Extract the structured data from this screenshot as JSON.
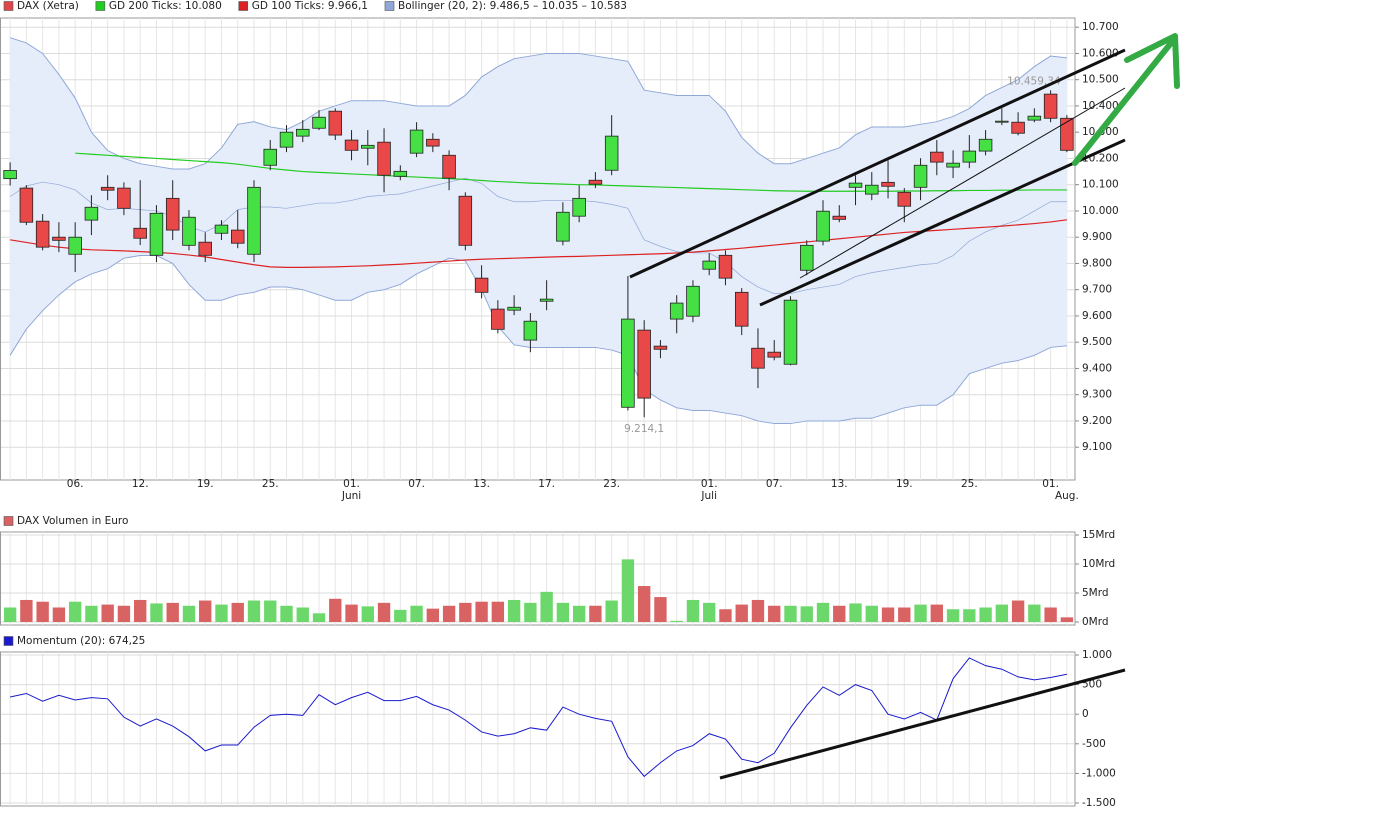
{
  "chart_data": [
    {
      "type": "candlestick",
      "categories": [
        null,
        null,
        null,
        null,
        "06.",
        null,
        null,
        null,
        "12.",
        null,
        null,
        null,
        "19.",
        null,
        null,
        null,
        "25.",
        null,
        null,
        null,
        null,
        "01.",
        null,
        null,
        null,
        "07.",
        null,
        null,
        null,
        "13.",
        null,
        null,
        null,
        "17.",
        null,
        null,
        null,
        "23.",
        null,
        null,
        null,
        null,
        null,
        "01.",
        null,
        null,
        null,
        "07.",
        null,
        null,
        null,
        "13.",
        null,
        null,
        null,
        "19.",
        null,
        null,
        null,
        "25.",
        null,
        null,
        null,
        null,
        "01.",
        null
      ],
      "months": [
        null,
        null,
        null,
        null,
        null,
        null,
        null,
        null,
        null,
        null,
        null,
        null,
        null,
        null,
        null,
        null,
        null,
        null,
        null,
        null,
        null,
        "Juni",
        null,
        null,
        null,
        null,
        null,
        null,
        null,
        null,
        null,
        null,
        null,
        null,
        null,
        null,
        null,
        null,
        null,
        null,
        null,
        null,
        null,
        "Juli",
        null,
        null,
        null,
        null,
        null,
        null,
        null,
        null,
        null,
        null,
        null,
        null,
        null,
        null,
        null,
        null,
        null,
        null,
        null,
        null,
        null,
        "Aug.",
        null
      ],
      "series": [
        {
          "name": "DAX (Xetra)",
          "color": "#e0474c",
          "up_color": "#44e044",
          "down_color": "#e84848",
          "open": [
            10123,
            10087,
            9961,
            9900,
            9835,
            9965,
            10090,
            10087,
            9934,
            9831,
            10048,
            9869,
            9881,
            9915,
            9927,
            9835,
            10174,
            10243,
            10285,
            10315,
            10380,
            10270,
            10239,
            10262,
            10132,
            10220,
            10273,
            10212,
            10056,
            9744,
            9626,
            9622,
            9508,
            9656,
            9885,
            9980,
            10117,
            10155,
            9252,
            9546,
            9485,
            9588,
            9599,
            9778,
            9831,
            9690,
            9477,
            9462,
            9416,
            9774,
            9885,
            9980,
            10090,
            10064,
            10109,
            10071,
            10090,
            10224,
            10167,
            10186,
            10228,
            10338,
            10338,
            10346,
            10445,
            10353
          ],
          "high": [
            10185,
            10098,
            9988,
            9957,
            9957,
            10060,
            10136,
            10109,
            10117,
            10022,
            10117,
            10003,
            9919,
            9965,
            10003,
            10117,
            10270,
            10327,
            10346,
            10384,
            10391,
            10308,
            10308,
            10315,
            10174,
            10338,
            10296,
            10231,
            10071,
            9793,
            9660,
            9679,
            9611,
            9736,
            10033,
            10098,
            10148,
            10365,
            9752,
            9584,
            9508,
            9679,
            9736,
            9839,
            9850,
            9706,
            9553,
            9508,
            9675,
            9888,
            10041,
            10022,
            10136,
            10148,
            10193,
            10087,
            10201,
            10270,
            10231,
            10289,
            10308,
            10391,
            10376,
            10391,
            10459.34,
            10365
          ],
          "low": [
            10097,
            9946,
            9850,
            9843,
            9767,
            9908,
            10041,
            9984,
            9870,
            9805,
            9889,
            9850,
            9805,
            9889,
            9858,
            9805,
            10155,
            10224,
            10262,
            10308,
            10270,
            10193,
            10174,
            10071,
            10117,
            10205,
            10224,
            10079,
            9850,
            9667,
            9534,
            9603,
            9462,
            9622,
            9869,
            9957,
            10087,
            10136,
            9240,
            9214.1,
            9439,
            9534,
            9576,
            9755,
            9717,
            9527,
            9325,
            9431,
            9412,
            9755,
            9869,
            9957,
            10022,
            10041,
            10048,
            9957,
            10041,
            10136,
            10125,
            10163,
            10212,
            10327,
            10288,
            10338,
            10338,
            10224
          ],
          "close": [
            10154,
            9957,
            9862,
            9888,
            9900,
            10014,
            10079,
            10010,
            9896,
            9991,
            9927,
            9976,
            9831,
            9946,
            9877,
            10090,
            10235,
            10300,
            10311,
            10357,
            10289,
            10231,
            10250,
            10136,
            10151,
            10308,
            10247,
            10125,
            9869,
            9690,
            9549,
            9633,
            9580,
            9664,
            9995,
            10048,
            10102,
            10285,
            9588,
            9287,
            9473,
            9649,
            9713,
            9809,
            9744,
            9561,
            9401,
            9443,
            9660,
            9869,
            9999,
            9968,
            10106,
            10098,
            10094,
            10018,
            10174,
            10186,
            10182,
            10228,
            10273,
            10342,
            10296,
            10361,
            10353,
            10231
          ]
        }
      ],
      "lines": [
        {
          "name": "GD 200 Ticks: 10.080",
          "color": "#22cc22",
          "values": [
            null,
            null,
            null,
            null,
            10220,
            10216,
            10212,
            10208,
            10204,
            10200,
            10196,
            10192,
            10188,
            10184,
            10178,
            10170,
            10162,
            10156,
            10150,
            10147,
            10144,
            10141,
            10138,
            10135,
            10132,
            10129,
            10126,
            10123,
            10120,
            10116,
            10112,
            10109,
            10106,
            10104,
            10102,
            10100,
            10099,
            10097,
            10095,
            10093,
            10091,
            10089,
            10087,
            10085,
            10083,
            10081,
            10079,
            10077,
            10076,
            10075,
            10075,
            10075,
            10075,
            10075,
            10075,
            10076,
            10076,
            10077,
            10077,
            10078,
            10078,
            10079,
            10079,
            10080,
            10080,
            10080
          ]
        },
        {
          "name": "GD 100 Ticks: 9.966,1",
          "color": "#dd2222",
          "values": [
            9890,
            9880,
            9870,
            9862,
            9856,
            9852,
            9850,
            9848,
            9845,
            9842,
            9838,
            9832,
            9825,
            9815,
            9805,
            9795,
            9787,
            9785,
            9785,
            9786,
            9787,
            9789,
            9791,
            9794,
            9797,
            9801,
            9805,
            9809,
            9813,
            9816,
            9818,
            9820,
            9822,
            9824,
            9826,
            9827,
            9829,
            9831,
            9833,
            9835,
            9837,
            9840,
            9843,
            9848,
            9853,
            9858,
            9864,
            9870,
            9876,
            9882,
            9888,
            9894,
            9900,
            9906,
            9912,
            9918,
            9922,
            9926,
            9930,
            9934,
            9938,
            9942,
            9947,
            9952,
            9958,
            9966.1
          ]
        }
      ],
      "bands": {
        "name": "Bollinger (20, 2): 9.486,5 – 10.035 – 10.583",
        "color": "#8fa8d8",
        "fill": "#e6edfa",
        "upper": [
          10660,
          10640,
          10600,
          10520,
          10430,
          10300,
          10230,
          10200,
          10180,
          10170,
          10160,
          10160,
          10180,
          10240,
          10330,
          10340,
          10320,
          10310,
          10340,
          10380,
          10400,
          10420,
          10420,
          10420,
          10410,
          10400,
          10400,
          10400,
          10440,
          10510,
          10550,
          10580,
          10590,
          10600,
          10600,
          10600,
          10590,
          10580,
          10570,
          10460,
          10450,
          10440,
          10440,
          10440,
          10380,
          10280,
          10220,
          10180,
          10180,
          10200,
          10220,
          10240,
          10290,
          10320,
          10320,
          10320,
          10330,
          10340,
          10360,
          10390,
          10440,
          10470,
          10500,
          10550,
          10590,
          10583
        ],
        "middle": [
          10055,
          10095,
          10110,
          10100,
          10080,
          10030,
          10005,
          10010,
          10005,
          10000,
          9980,
          9940,
          9920,
          9950,
          10005,
          10015,
          10015,
          10010,
          10020,
          10030,
          10030,
          10040,
          10055,
          10060,
          10065,
          10080,
          10095,
          10110,
          10125,
          10105,
          10055,
          10035,
          10035,
          10040,
          10040,
          10040,
          10035,
          10025,
          10010,
          9890,
          9865,
          9845,
          9840,
          9840,
          9805,
          9750,
          9710,
          9685,
          9685,
          9700,
          9710,
          9720,
          9750,
          9765,
          9775,
          9785,
          9795,
          9800,
          9830,
          9885,
          9920,
          9945,
          9965,
          10000,
          10035,
          10035
        ],
        "lower": [
          9450,
          9550,
          9620,
          9680,
          9730,
          9760,
          9780,
          9820,
          9830,
          9830,
          9800,
          9720,
          9660,
          9660,
          9680,
          9690,
          9710,
          9710,
          9700,
          9680,
          9660,
          9660,
          9690,
          9700,
          9720,
          9760,
          9790,
          9820,
          9810,
          9700,
          9560,
          9490,
          9480,
          9480,
          9480,
          9480,
          9480,
          9470,
          9450,
          9320,
          9280,
          9250,
          9240,
          9240,
          9230,
          9220,
          9200,
          9190,
          9190,
          9200,
          9200,
          9200,
          9210,
          9210,
          9230,
          9250,
          9260,
          9260,
          9300,
          9380,
          9400,
          9420,
          9430,
          9450,
          9480,
          9486.5
        ]
      },
      "max_label": "10.459,34",
      "min_label": "9.214,1",
      "ylim": [
        8975,
        10735
      ],
      "yticks": [
        {
          "value": 9100,
          "label": "9.100"
        },
        {
          "value": 9200,
          "label": "9.200"
        },
        {
          "value": 9300,
          "label": "9.300"
        },
        {
          "value": 9400,
          "label": "9.400"
        },
        {
          "value": 9500,
          "label": "9.500"
        },
        {
          "value": 9600,
          "label": "9.600"
        },
        {
          "value": 9700,
          "label": "9.700"
        },
        {
          "value": 9800,
          "label": "9.800"
        },
        {
          "value": 9900,
          "label": "9.900"
        },
        {
          "value": 10000,
          "label": "10.000"
        },
        {
          "value": 10100,
          "label": "10.100"
        },
        {
          "value": 10200,
          "label": "10.200"
        },
        {
          "value": 10300,
          "label": "10.300"
        },
        {
          "value": 10400,
          "label": "10.400"
        },
        {
          "value": 10500,
          "label": "10.500"
        },
        {
          "value": 10600,
          "label": "10.600"
        },
        {
          "value": 10700,
          "label": "10.700"
        }
      ],
      "grid": true
    },
    {
      "type": "bar",
      "series": [
        {
          "name": "DAX Volumen in Euro",
          "color": "#d96262",
          "up_color": "#6cd86c",
          "down_color": "#d96262",
          "values": [
            2.5,
            3.8,
            3.5,
            2.5,
            3.5,
            2.8,
            3,
            2.8,
            3.8,
            3.2,
            3.3,
            2.8,
            3.7,
            3,
            3.3,
            3.7,
            3.7,
            2.8,
            2.5,
            1.5,
            4,
            3,
            2.7,
            3.3,
            2.1,
            2.8,
            2.3,
            2.8,
            3.3,
            3.5,
            3.5,
            3.8,
            3.3,
            5.2,
            3.3,
            2.8,
            2.8,
            3.7,
            10.8,
            6.2,
            4.3,
            0.2,
            3.8,
            3.3,
            2.2,
            3,
            3.8,
            2.8,
            2.8,
            2.7,
            3.3,
            2.8,
            3.2,
            2.8,
            2.5,
            2.5,
            3,
            3,
            2.2,
            2.2,
            2.5,
            3,
            3.7,
            3,
            2.5,
            0.8
          ]
        }
      ],
      "ylim": [
        0,
        15
      ],
      "yticks": [
        {
          "value": 0,
          "label": "0Mrd"
        },
        {
          "value": 5,
          "label": "5Mrd"
        },
        {
          "value": 10,
          "label": "10Mrd"
        },
        {
          "value": 15,
          "label": "15Mrd"
        }
      ],
      "grid": true
    },
    {
      "type": "line",
      "series": [
        {
          "name": "Momentum (20): 674,25",
          "color": "#1a1acc",
          "values": [
            290,
            350,
            220,
            320,
            240,
            280,
            260,
            -50,
            -200,
            -80,
            -200,
            -380,
            -620,
            -520,
            -520,
            -220,
            -20,
            0,
            -20,
            330,
            160,
            280,
            370,
            230,
            230,
            300,
            160,
            70,
            -100,
            -300,
            -370,
            -330,
            -230,
            -270,
            120,
            0,
            -70,
            -120,
            -720,
            -1050,
            -820,
            -620,
            -530,
            -330,
            -420,
            -760,
            -820,
            -660,
            -230,
            150,
            460,
            320,
            500,
            400,
            0,
            -80,
            30,
            -100,
            600,
            950,
            820,
            760,
            630,
            580,
            620,
            674.25
          ]
        }
      ],
      "ylim": [
        -1500,
        1000
      ],
      "yticks": [
        {
          "value": -1500,
          "label": "-1.500"
        },
        {
          "value": -1000,
          "label": "-1.000"
        },
        -500,
        0,
        500,
        {
          "value": 1000,
          "label": "1.000"
        }
      ],
      "grid": true
    }
  ]
}
